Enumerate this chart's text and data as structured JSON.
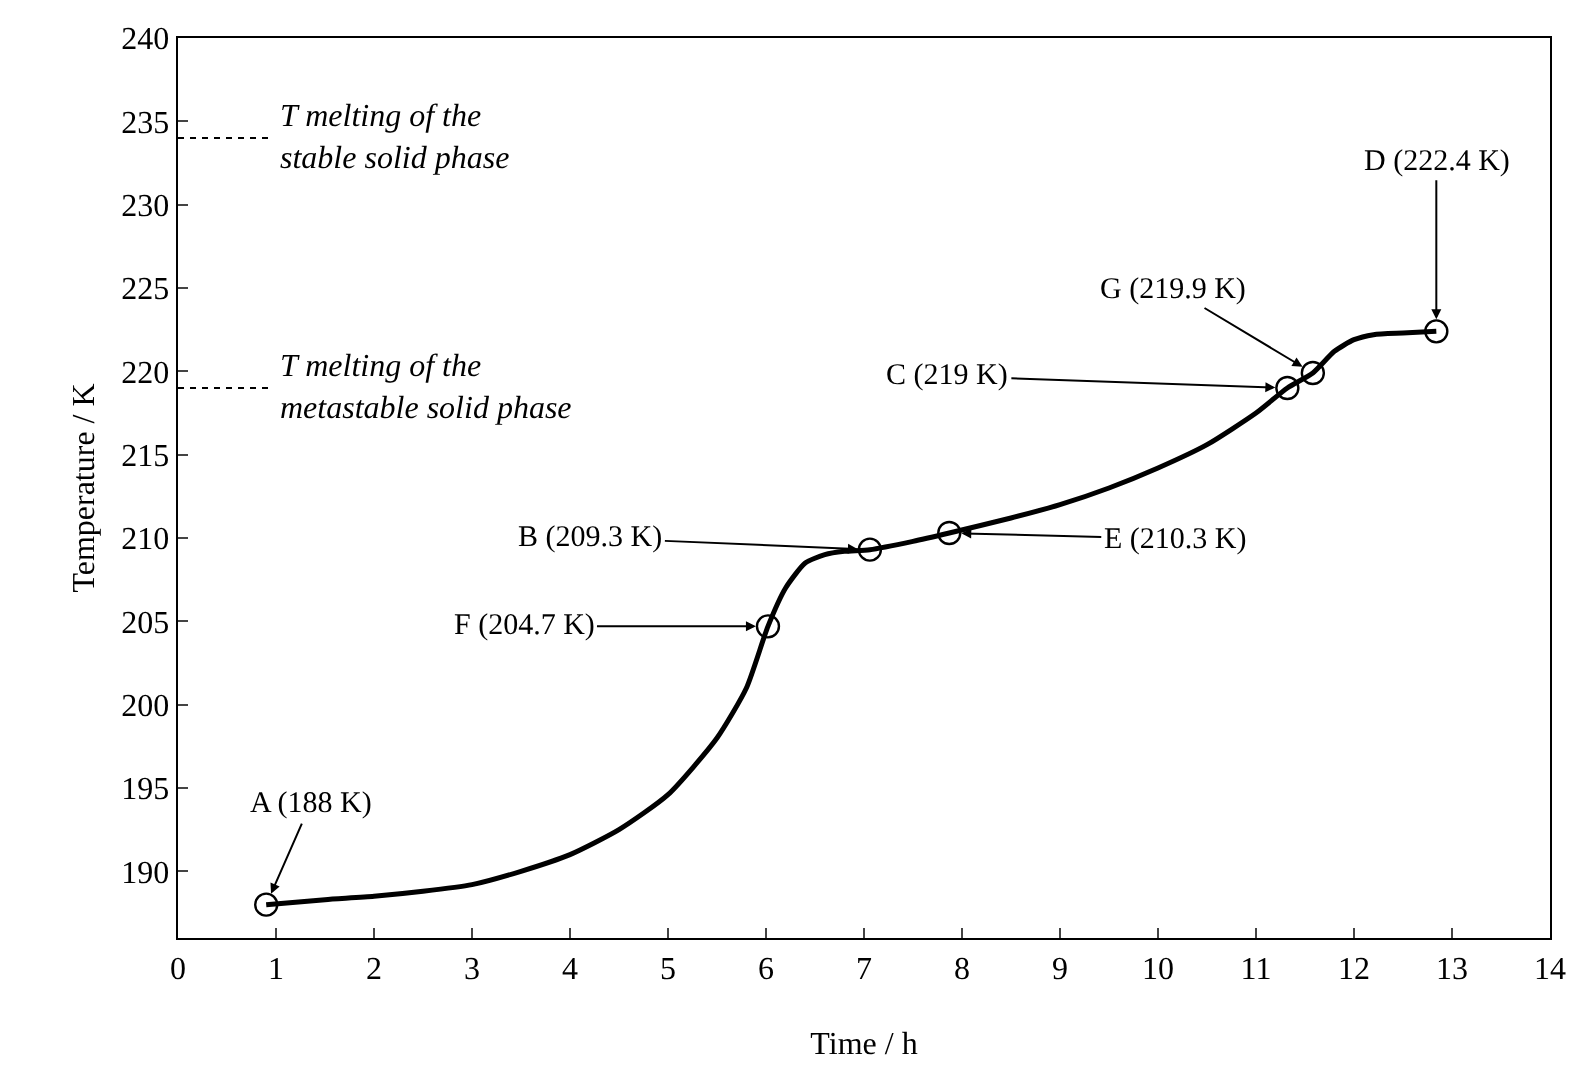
{
  "chart_data": {
    "type": "line",
    "xlabel": "Time / h",
    "ylabel": "Temperature / K",
    "xlim": [
      0,
      14
    ],
    "xticks": [
      0,
      1,
      2,
      3,
      4,
      5,
      6,
      7,
      8,
      9,
      10,
      11,
      12,
      13,
      14
    ],
    "ylim": [
      186,
      240
    ],
    "yticks": [
      190,
      195,
      200,
      205,
      210,
      215,
      220,
      225,
      230,
      235,
      240
    ],
    "grid": false,
    "series": [
      {
        "type": "line",
        "color": "#000000",
        "marker": "none",
        "x": [
          0.9,
          1.5,
          2,
          2.5,
          3,
          3.5,
          4,
          4.5,
          5,
          5.5,
          5.8,
          6.02,
          6.2,
          6.4,
          6.6,
          6.8,
          7.06,
          7.5,
          7.87,
          8.5,
          9,
          9.5,
          10,
          10.5,
          11,
          11.32,
          11.58,
          11.8,
          12,
          12.2,
          12.5,
          12.84
        ],
        "values": [
          188,
          188.3,
          188.5,
          188.8,
          189.2,
          190,
          191,
          192.5,
          194.6,
          198,
          201,
          204.7,
          207,
          208.5,
          209,
          209.2,
          209.3,
          209.8,
          210.3,
          211.2,
          212,
          213,
          214.2,
          215.6,
          217.5,
          219,
          219.9,
          221.2,
          221.9,
          222.2,
          222.3,
          222.4
        ]
      },
      {
        "type": "scatter",
        "color": "#000000",
        "marker": "circle",
        "x": [
          0.9,
          6.02,
          7.06,
          7.87,
          11.32,
          11.58,
          12.84
        ],
        "values": [
          188,
          204.7,
          209.3,
          210.3,
          219,
          219.9,
          222.4
        ]
      }
    ],
    "ref_lines": [
      {
        "axis": "y",
        "value": 234,
        "label": "T melting of the\nstable solid phase",
        "color": "#000000",
        "line_style": "dotted"
      },
      {
        "axis": "y",
        "value": 219,
        "label": "T melting of the\nmetastable solid phase",
        "color": "#000000",
        "line_style": "dotted"
      }
    ],
    "annotations": [
      {
        "text": "A (188 K)",
        "x": 0.9,
        "y": 188
      },
      {
        "text": "F (204.7 K)",
        "x": 6.02,
        "y": 204.7
      },
      {
        "text": "B (209.3 K)",
        "x": 7.06,
        "y": 209.3
      },
      {
        "text": "E (210.3 K)",
        "x": 7.87,
        "y": 210.3
      },
      {
        "text": "C (219 K)",
        "x": 11.32,
        "y": 219
      },
      {
        "text": "G (219.9 K)",
        "x": 11.58,
        "y": 219.9
      },
      {
        "text": "D (222.4 K)",
        "x": 12.84,
        "y": 222.4
      }
    ]
  }
}
